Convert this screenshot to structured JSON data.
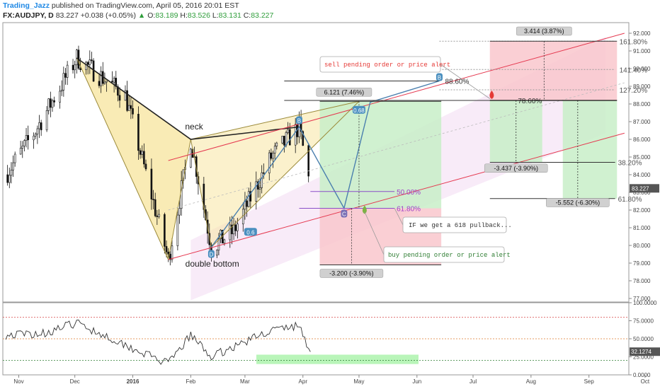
{
  "header": {
    "author": "Trading_Jazz",
    "published_text": "published on TradingView.com, April 05, 2016 20:01 EST",
    "symbol": "FX:AUDJPY, D",
    "last": "83.227",
    "change_arrow": "▲",
    "change": "+0.038 (+0.05%)",
    "o_label": "O:",
    "o": "83.189",
    "h_label": "H:",
    "h": "83.526",
    "l_label": "L:",
    "l": "83.131",
    "c_label": "C:",
    "c": "83.227"
  },
  "chart_data": [
    {
      "type": "candlestick",
      "symbol": "FX:AUDJPY",
      "interval": "D",
      "x_ticks": [
        "Nov",
        "Dec",
        "2016",
        "Feb",
        "Mar",
        "Apr",
        "May",
        "Jun",
        "Jul",
        "Aug",
        "Sep",
        "Oct"
      ],
      "y_ticks": [
        "92.000",
        "91.000",
        "90.000",
        "89.000",
        "88.000",
        "87.000",
        "86.000",
        "85.000",
        "84.000",
        "83.000",
        "82.000",
        "81.000",
        "80.000",
        "79.000",
        "78.000",
        "77.000"
      ],
      "ylim": [
        76.8,
        92.6
      ],
      "last_price_label": "83.227",
      "pattern_points": {
        "X": {
          "date": "2015-12-02",
          "price": 90.6
        },
        "A": {
          "date": "2016-01-20",
          "price": 79.2
        },
        "B": {
          "date": "2016-02-01",
          "price": 86.0
        },
        "C": {
          "date": "2016-02-12",
          "price": 79.9
        },
        "D": {
          "date": "2016-03-30",
          "price": 86.7
        }
      },
      "pattern_labels": {
        "neck": "neck",
        "double_bottom": "double bottom"
      },
      "swing_markers": [
        "B",
        "B",
        "C",
        "D",
        "0.6",
        "0.68",
        "0.5"
      ],
      "fib_levels": [
        {
          "label": "161.80%",
          "price": 91.55
        },
        {
          "label": "141.40%",
          "price": 89.95
        },
        {
          "label": "127.20%",
          "price": 88.8
        },
        {
          "label": "88.60%",
          "price": 89.3
        },
        {
          "label": "78.60%",
          "price": 88.2
        },
        {
          "label": "38.20%",
          "price": 84.7
        },
        {
          "label": "61.80%",
          "price": 82.65
        },
        {
          "label": "50.00%",
          "price": 83.05
        },
        {
          "label": "61.80%",
          "price": 82.1
        }
      ],
      "projection_labels": [
        {
          "text": "3.414 (3.87%)"
        },
        {
          "text": "6.121 (7.46%)"
        },
        {
          "text": "-3.437 (-3.90%)"
        },
        {
          "text": "-5.552 (-6.30%)"
        },
        {
          "text": "-3.200 (-3.90%)"
        }
      ],
      "annotations": [
        {
          "text": "sell pending order or price alert",
          "color": "#e53935"
        },
        {
          "text": "IF we get a 618 pullback...",
          "color": "#333333"
        },
        {
          "text": "buy pending order or price alert",
          "color": "#2e7d32"
        }
      ],
      "colors": {
        "bull_zone": "#c8efc8",
        "bear_zone": "#f9c7cd",
        "harmonic_fill": "#f8e6a2",
        "channel": "#e53950",
        "path": "#4a7fae",
        "price": "#111111"
      }
    },
    {
      "type": "line",
      "indicator": "RSI",
      "y_ticks": [
        "100.0000",
        "75.0000",
        "50.0000",
        "25.0000",
        "0.0000"
      ],
      "ylim": [
        0,
        100
      ],
      "levels": [
        80,
        50,
        20
      ],
      "last_value_label": "32.1274",
      "target_zone": {
        "from": 15,
        "to": 28,
        "color": "#b9f5b9"
      }
    }
  ]
}
